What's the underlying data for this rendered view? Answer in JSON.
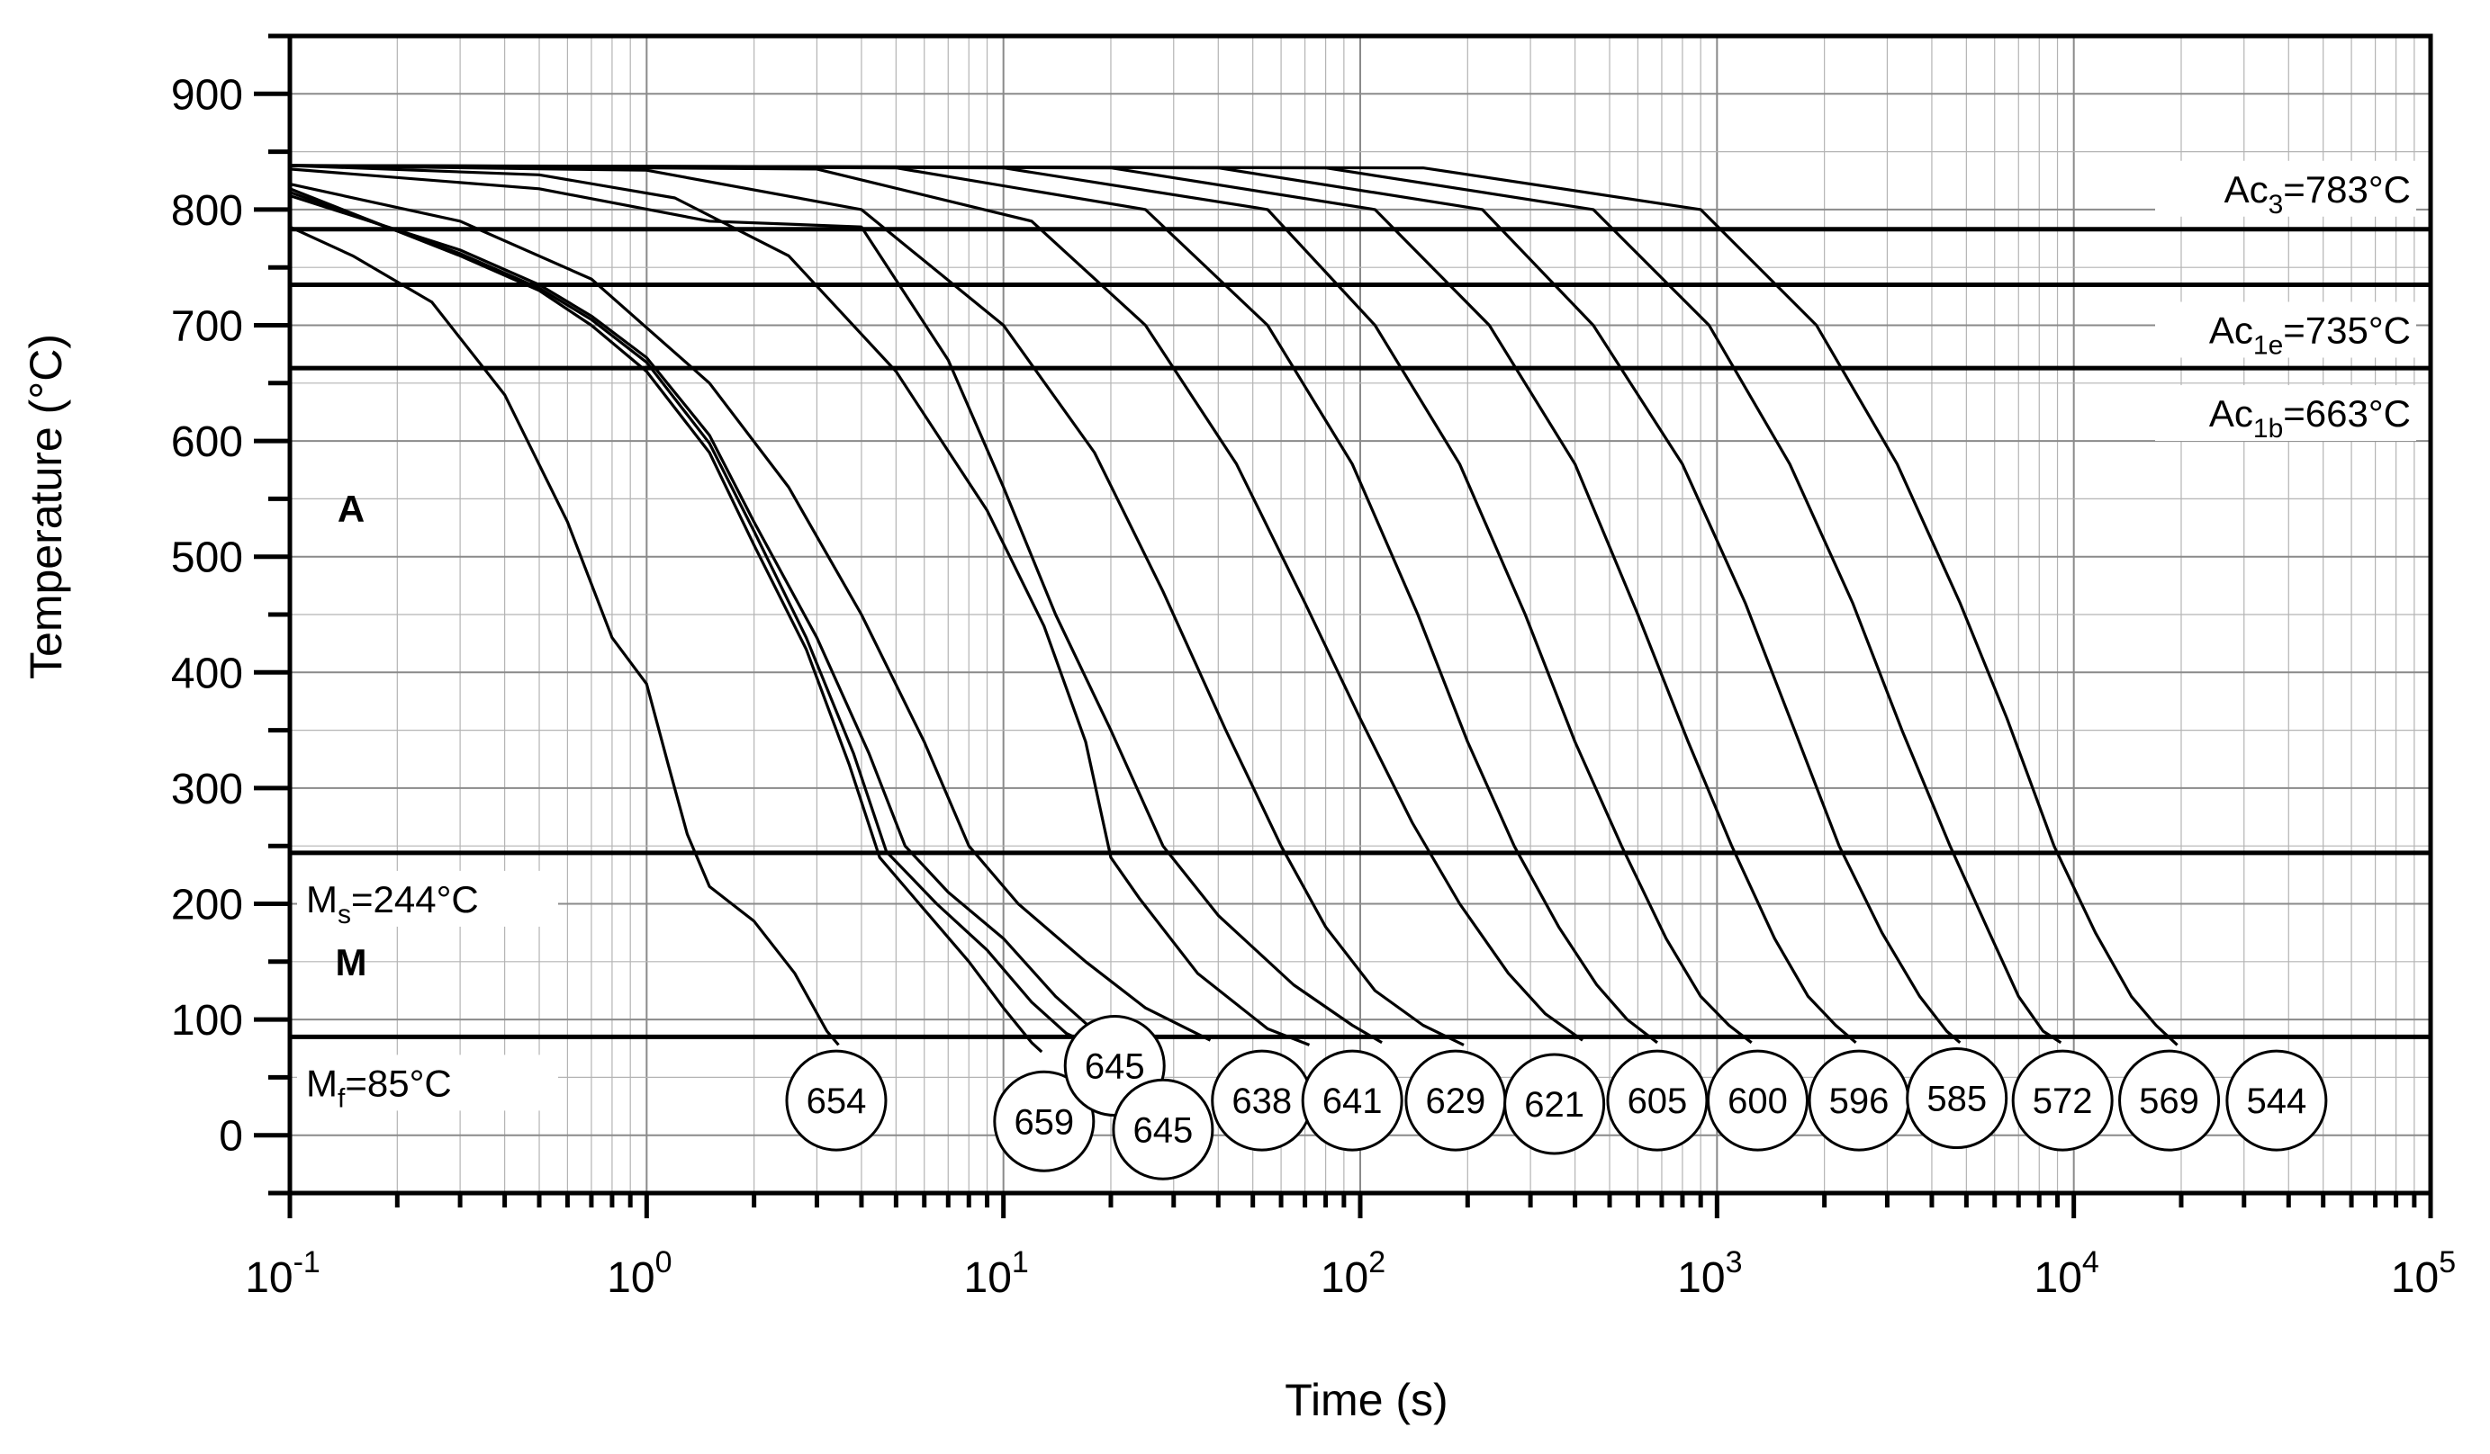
{
  "chart_data": {
    "type": "line",
    "title": "",
    "xlabel": "Time (s)",
    "ylabel": "Temperature (°C)",
    "x_scale": "log",
    "xlim": [
      0.1,
      100000
    ],
    "ylim": [
      -50,
      950
    ],
    "x_tick_labels": [
      {
        "base": "10",
        "exp": "-1",
        "value": 0.1
      },
      {
        "base": "10",
        "exp": "0",
        "value": 1
      },
      {
        "base": "10",
        "exp": "1",
        "value": 10
      },
      {
        "base": "10",
        "exp": "2",
        "value": 100
      },
      {
        "base": "10",
        "exp": "3",
        "value": 1000
      },
      {
        "base": "10",
        "exp": "4",
        "value": 10000
      },
      {
        "base": "10",
        "exp": "5",
        "value": 100000
      }
    ],
    "y_tick_labels": [
      "0",
      "100",
      "200",
      "300",
      "400",
      "500",
      "600",
      "700",
      "800",
      "900"
    ],
    "grid": true,
    "reference_lines": [
      {
        "y": 783,
        "main": "Ac",
        "sub": "3",
        "rest": "=783°C",
        "label_side": "right"
      },
      {
        "y": 735,
        "main": "Ac",
        "sub": "1e",
        "rest": "=735°C",
        "label_side": "right"
      },
      {
        "y": 663,
        "main": "Ac",
        "sub": "1b",
        "rest": "=663°C",
        "label_side": "right"
      },
      {
        "y": 244,
        "main": "M",
        "sub": "s",
        "rest": "=244°C",
        "label_side": "left"
      },
      {
        "y": 85,
        "main": "M",
        "sub": "f",
        "rest": "=85°C",
        "label_side": "left"
      }
    ],
    "region_labels": [
      {
        "text": "A",
        "x": 0.2,
        "y": 530
      },
      {
        "text": "M",
        "x": 0.2,
        "y": 138
      }
    ],
    "series": [
      {
        "hardness": "654",
        "label_at": [
          3.4,
          30
        ],
        "points": [
          [
            0.1,
            785
          ],
          [
            0.15,
            760
          ],
          [
            0.25,
            720
          ],
          [
            0.4,
            640
          ],
          [
            0.6,
            530
          ],
          [
            0.8,
            430
          ],
          [
            1.0,
            390
          ],
          [
            1.15,
            320
          ],
          [
            1.3,
            260
          ],
          [
            1.5,
            215
          ],
          [
            2.0,
            185
          ],
          [
            2.6,
            140
          ],
          [
            3.2,
            90
          ],
          [
            3.45,
            78
          ]
        ]
      },
      {
        "hardness": "659",
        "label_at": [
          13.0,
          12
        ],
        "points": [
          [
            0.1,
            818
          ],
          [
            0.3,
            760
          ],
          [
            0.5,
            730
          ],
          [
            0.7,
            700
          ],
          [
            1.0,
            660
          ],
          [
            1.5,
            590
          ],
          [
            2.0,
            510
          ],
          [
            2.8,
            420
          ],
          [
            3.7,
            320
          ],
          [
            4.5,
            240
          ],
          [
            6,
            195
          ],
          [
            8,
            150
          ],
          [
            10,
            110
          ],
          [
            12,
            80
          ],
          [
            12.8,
            72
          ]
        ]
      },
      {
        "hardness": "645",
        "label_at": [
          20.5,
          60
        ],
        "points": [
          [
            0.1,
            815
          ],
          [
            0.3,
            762
          ],
          [
            0.5,
            732
          ],
          [
            0.7,
            705
          ],
          [
            1.0,
            668
          ],
          [
            1.5,
            598
          ],
          [
            2.0,
            522
          ],
          [
            2.8,
            430
          ],
          [
            3.8,
            330
          ],
          [
            4.7,
            245
          ],
          [
            6.5,
            200
          ],
          [
            9,
            160
          ],
          [
            12,
            115
          ],
          [
            15,
            88
          ],
          [
            17,
            80
          ]
        ]
      },
      {
        "hardness": "645",
        "label_at": [
          28.0,
          5
        ],
        "points": [
          [
            0.1,
            812
          ],
          [
            0.3,
            765
          ],
          [
            0.5,
            735
          ],
          [
            0.7,
            708
          ],
          [
            1.0,
            672
          ],
          [
            1.5,
            605
          ],
          [
            2.0,
            530
          ],
          [
            3.0,
            430
          ],
          [
            4.2,
            330
          ],
          [
            5.3,
            250
          ],
          [
            7,
            210
          ],
          [
            10,
            170
          ],
          [
            14,
            120
          ],
          [
            18,
            90
          ],
          [
            19,
            82
          ]
        ]
      },
      {
        "hardness": "638",
        "label_at": [
          53.0,
          30
        ],
        "points": [
          [
            0.1,
            822
          ],
          [
            0.3,
            790
          ],
          [
            0.7,
            740
          ],
          [
            1.5,
            650
          ],
          [
            2.5,
            560
          ],
          [
            4,
            450
          ],
          [
            6,
            340
          ],
          [
            8,
            250
          ],
          [
            11,
            200
          ],
          [
            17,
            150
          ],
          [
            25,
            110
          ],
          [
            38,
            82
          ]
        ]
      },
      {
        "hardness": "641",
        "label_at": [
          95.0,
          30
        ],
        "points": [
          [
            0.1,
            838
          ],
          [
            0.5,
            830
          ],
          [
            1.2,
            810
          ],
          [
            2.5,
            760
          ],
          [
            5,
            660
          ],
          [
            9,
            540
          ],
          [
            13,
            440
          ],
          [
            17,
            340
          ],
          [
            20,
            240
          ],
          [
            24,
            205
          ],
          [
            35,
            140
          ],
          [
            55,
            92
          ],
          [
            72,
            78
          ]
        ]
      },
      {
        "hardness": "629",
        "label_at": [
          185.0,
          30
        ],
        "points": [
          [
            0.1,
            835
          ],
          [
            0.5,
            818
          ],
          [
            1.5,
            790
          ],
          [
            4,
            785
          ],
          [
            7,
            670
          ],
          [
            10,
            560
          ],
          [
            14,
            450
          ],
          [
            20,
            350
          ],
          [
            28,
            250
          ],
          [
            40,
            190
          ],
          [
            65,
            130
          ],
          [
            95,
            95
          ],
          [
            115,
            80
          ]
        ]
      },
      {
        "hardness": "621",
        "label_at": [
          350.0,
          27
        ],
        "points": [
          [
            0.1,
            838
          ],
          [
            1,
            834
          ],
          [
            4,
            800
          ],
          [
            10,
            700
          ],
          [
            18,
            590
          ],
          [
            28,
            470
          ],
          [
            42,
            350
          ],
          [
            60,
            250
          ],
          [
            80,
            180
          ],
          [
            110,
            125
          ],
          [
            150,
            95
          ],
          [
            195,
            78
          ]
        ]
      },
      {
        "hardness": "605",
        "label_at": [
          680.0,
          30
        ],
        "points": [
          [
            0.1,
            838
          ],
          [
            3,
            835
          ],
          [
            12,
            790
          ],
          [
            25,
            700
          ],
          [
            45,
            580
          ],
          [
            70,
            460
          ],
          [
            100,
            360
          ],
          [
            140,
            270
          ],
          [
            190,
            200
          ],
          [
            260,
            140
          ],
          [
            330,
            105
          ],
          [
            420,
            82
          ]
        ]
      },
      {
        "hardness": "600",
        "label_at": [
          1300.0,
          30
        ],
        "points": [
          [
            0.1,
            838
          ],
          [
            5,
            836
          ],
          [
            25,
            800
          ],
          [
            55,
            700
          ],
          [
            95,
            580
          ],
          [
            145,
            450
          ],
          [
            200,
            340
          ],
          [
            270,
            250
          ],
          [
            360,
            180
          ],
          [
            460,
            130
          ],
          [
            560,
            100
          ],
          [
            680,
            80
          ]
        ]
      },
      {
        "hardness": "596",
        "label_at": [
          2500.0,
          30
        ],
        "points": [
          [
            0.1,
            838
          ],
          [
            10,
            836
          ],
          [
            55,
            800
          ],
          [
            110,
            700
          ],
          [
            190,
            580
          ],
          [
            290,
            450
          ],
          [
            400,
            340
          ],
          [
            540,
            250
          ],
          [
            720,
            170
          ],
          [
            900,
            120
          ],
          [
            1080,
            95
          ],
          [
            1250,
            80
          ]
        ]
      },
      {
        "hardness": "585",
        "label_at": [
          4700.0,
          32
        ],
        "points": [
          [
            0.1,
            838
          ],
          [
            20,
            836
          ],
          [
            110,
            800
          ],
          [
            230,
            700
          ],
          [
            400,
            580
          ],
          [
            600,
            450
          ],
          [
            830,
            340
          ],
          [
            1100,
            250
          ],
          [
            1450,
            170
          ],
          [
            1800,
            120
          ],
          [
            2150,
            95
          ],
          [
            2450,
            80
          ]
        ]
      },
      {
        "hardness": "572",
        "label_at": [
          9300.0,
          30
        ],
        "points": [
          [
            0.1,
            838
          ],
          [
            40,
            836
          ],
          [
            220,
            800
          ],
          [
            450,
            700
          ],
          [
            800,
            580
          ],
          [
            1200,
            460
          ],
          [
            1650,
            350
          ],
          [
            2200,
            250
          ],
          [
            2900,
            175
          ],
          [
            3700,
            120
          ],
          [
            4400,
            90
          ],
          [
            4800,
            80
          ]
        ]
      },
      {
        "hardness": "569",
        "label_at": [
          18500.0,
          30
        ],
        "points": [
          [
            0.1,
            838
          ],
          [
            80,
            836
          ],
          [
            450,
            800
          ],
          [
            950,
            700
          ],
          [
            1600,
            580
          ],
          [
            2400,
            460
          ],
          [
            3300,
            350
          ],
          [
            4500,
            250
          ],
          [
            5800,
            175
          ],
          [
            7000,
            120
          ],
          [
            8200,
            90
          ],
          [
            9200,
            80
          ]
        ]
      },
      {
        "hardness": "544",
        "label_at": [
          37000.0,
          30
        ],
        "points": [
          [
            0.1,
            838
          ],
          [
            150,
            836
          ],
          [
            900,
            800
          ],
          [
            1900,
            700
          ],
          [
            3200,
            580
          ],
          [
            4800,
            460
          ],
          [
            6500,
            360
          ],
          [
            8800,
            250
          ],
          [
            11500,
            175
          ],
          [
            14500,
            120
          ],
          [
            17000,
            95
          ],
          [
            19500,
            78
          ]
        ]
      }
    ]
  }
}
